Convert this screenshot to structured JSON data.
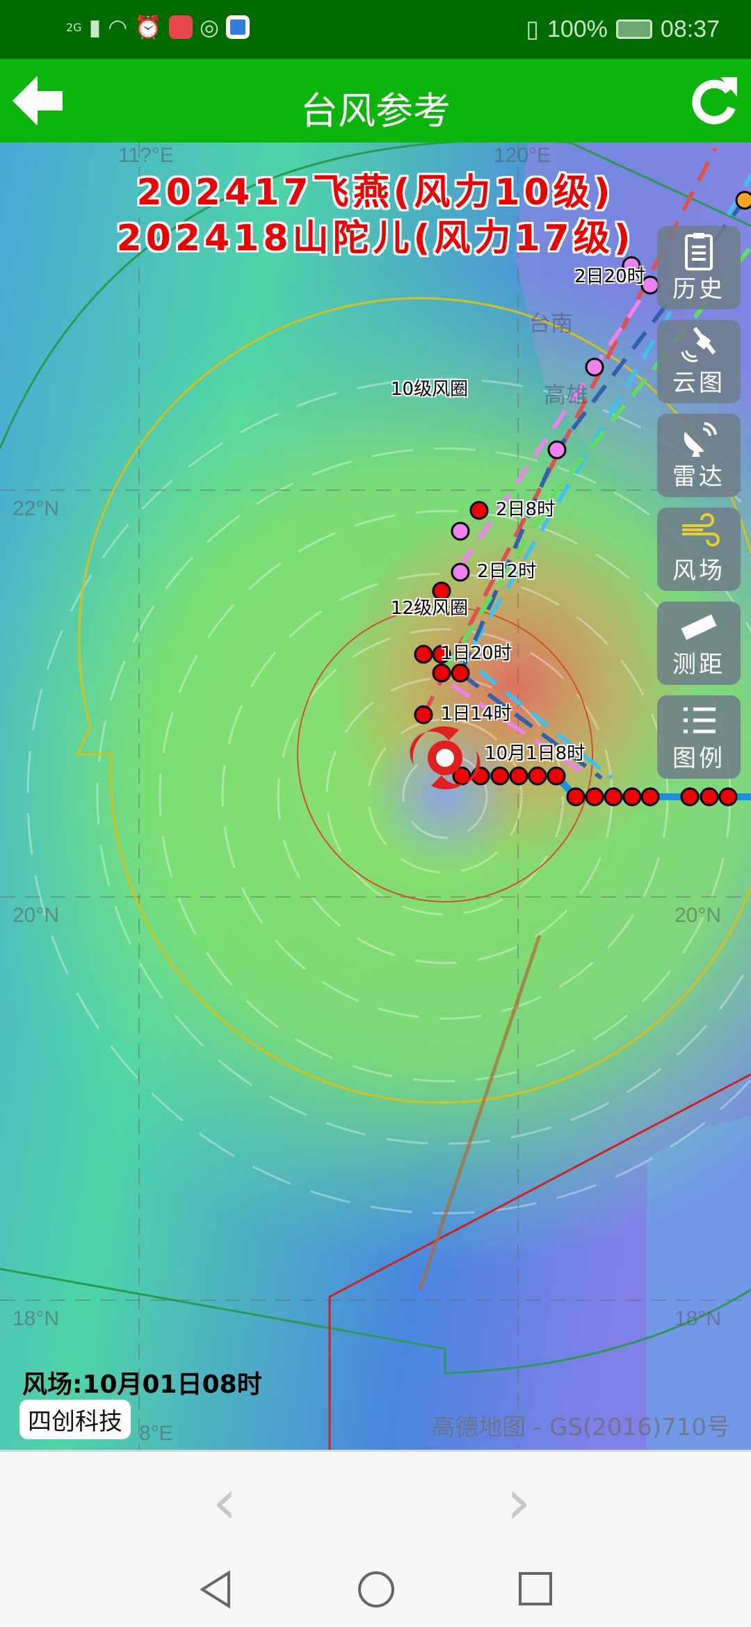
{
  "status_bar": {
    "network": "2G",
    "battery": "100%",
    "time": "08:37",
    "icons": [
      "signal-icon",
      "wifi-icon",
      "alarm-icon",
      "huawei-app-icon",
      "assistant-icon",
      "browser-icon",
      "vibrate-icon",
      "battery-icon"
    ]
  },
  "header": {
    "title": "台风参考",
    "back_icon": "back-arrow-icon",
    "refresh_icon": "refresh-icon"
  },
  "storms": [
    {
      "line": "202417飞燕(风力10级)"
    },
    {
      "line": "202418山陀儿(风力17级)"
    }
  ],
  "map": {
    "lat_labels": [
      "22°N",
      "20°N",
      "18°N"
    ],
    "lon_labels": [
      "11?°E",
      "120°E",
      "8°E",
      "°E"
    ],
    "cities": [
      "台南",
      "高雄"
    ],
    "circle_labels": {
      "level10": "10级风圈",
      "level12": "12级风圈"
    },
    "track_labels": [
      "2日20时",
      "2日8时",
      "2日2时",
      "1日20时",
      "1日14时",
      "10月1日8时"
    ],
    "colors": {
      "past_track": "#1e90e0",
      "point_red": "#ee0000",
      "point_pink": "#ee82ee",
      "point_orange": "#f5a623",
      "circle10": "#d4c21a",
      "circle12": "#d0502a",
      "circle7": "#2a9a50"
    },
    "wind_time": "风场:10月01日08时",
    "brand": "四创科技",
    "credit": "高德地图 - GS(2016)710号"
  },
  "side_buttons": [
    {
      "label": "历史",
      "icon": "clipboard-icon"
    },
    {
      "label": "云图",
      "icon": "satellite-icon"
    },
    {
      "label": "雷达",
      "icon": "radar-dish-icon"
    },
    {
      "label": "风场",
      "icon": "wind-icon"
    },
    {
      "label": "测距",
      "icon": "ruler-icon"
    },
    {
      "label": "图例",
      "icon": "legend-list-icon"
    }
  ],
  "bottom_nav": {
    "prev": "‹",
    "next": "›"
  },
  "system_nav": [
    "back",
    "home",
    "recents"
  ]
}
